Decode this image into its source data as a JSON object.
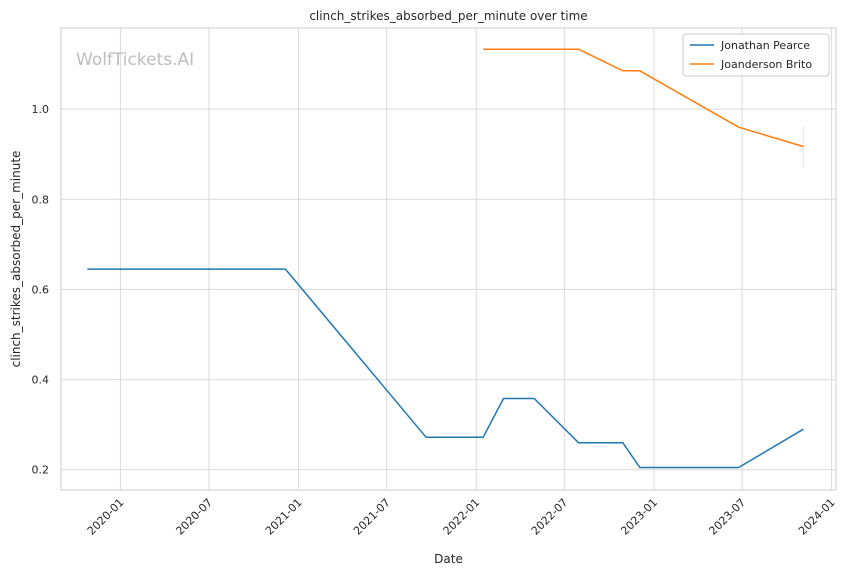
{
  "chart_data": {
    "type": "line",
    "title": "clinch_strikes_absorbed_per_minute over time",
    "xlabel": "Date",
    "ylabel": "clinch_strikes_absorbed_per_minute",
    "watermark": "WolfTickets.AI",
    "xlim": [
      "2019-09-01",
      "2024-01-10"
    ],
    "ylim": [
      0.155,
      1.18
    ],
    "x_ticks": [
      "2020-01",
      "2020-07",
      "2021-01",
      "2021-07",
      "2022-01",
      "2022-07",
      "2023-01",
      "2023-07",
      "2024-01"
    ],
    "y_ticks": [
      0.2,
      0.4,
      0.6,
      0.8,
      1.0
    ],
    "y_tick_labels": [
      "0.2",
      "0.4",
      "0.6",
      "0.8",
      "1.0"
    ],
    "grid": true,
    "legend_position": "top-right",
    "series": [
      {
        "name": "Jonathan Pearce",
        "color": "#1f77b4",
        "points": [
          {
            "x": "2019-10-25",
            "y": 0.645
          },
          {
            "x": "2020-12-05",
            "y": 0.645
          },
          {
            "x": "2021-09-20",
            "y": 0.272
          },
          {
            "x": "2022-01-15",
            "y": 0.272
          },
          {
            "x": "2022-02-26",
            "y": 0.358
          },
          {
            "x": "2022-04-30",
            "y": 0.358
          },
          {
            "x": "2022-07-30",
            "y": 0.26
          },
          {
            "x": "2022-10-29",
            "y": 0.26
          },
          {
            "x": "2022-12-03",
            "y": 0.205
          },
          {
            "x": "2023-06-24",
            "y": 0.205
          },
          {
            "x": "2023-11-04",
            "y": 0.29
          }
        ]
      },
      {
        "name": "Joanderson Brito",
        "color": "#ff7f0e",
        "points": [
          {
            "x": "2022-01-15",
            "y": 1.133
          },
          {
            "x": "2022-07-30",
            "y": 1.133
          },
          {
            "x": "2022-10-29",
            "y": 1.085
          },
          {
            "x": "2022-12-03",
            "y": 1.085
          },
          {
            "x": "2023-06-24",
            "y": 0.96
          },
          {
            "x": "2023-11-04",
            "y": 0.917
          }
        ],
        "error_band": {
          "x": "2023-11-04",
          "low": 0.87,
          "high": 0.965
        }
      }
    ]
  }
}
